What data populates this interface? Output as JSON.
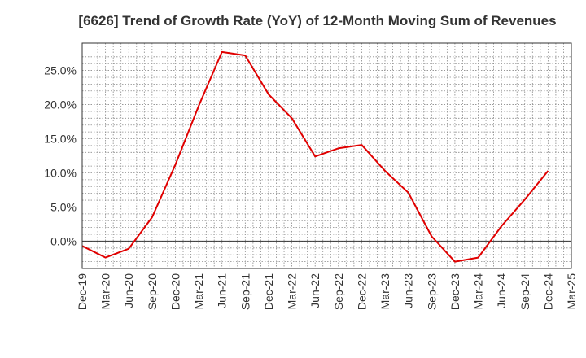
{
  "chart_data": {
    "type": "line",
    "title": "[6626]  Trend of Growth Rate (YoY) of 12-Month Moving Sum of Revenues",
    "xlabel": "",
    "ylabel": "",
    "x_tick_labels": [
      "Dec-19",
      "Mar-20",
      "Jun-20",
      "Sep-20",
      "Dec-20",
      "Mar-21",
      "Jun-21",
      "Sep-21",
      "Dec-21",
      "Mar-22",
      "Jun-22",
      "Sep-22",
      "Dec-22",
      "Mar-23",
      "Jun-23",
      "Sep-23",
      "Dec-23",
      "Mar-24",
      "Jun-24",
      "Sep-24",
      "Dec-24",
      "Mar-25"
    ],
    "y_tick_labels": [
      "0.0%",
      "5.0%",
      "10.0%",
      "15.0%",
      "20.0%",
      "25.0%"
    ],
    "y_ticks": [
      0,
      5,
      10,
      15,
      20,
      25
    ],
    "ylim": [
      -4,
      29
    ],
    "grid": true,
    "series": [
      {
        "color": "#e00000",
        "points": [
          {
            "x": "Dec-19",
            "y": -0.7
          },
          {
            "x": "Mar-20",
            "y": -2.4
          },
          {
            "x": "Jun-20",
            "y": -1.1
          },
          {
            "x": "Sep-20",
            "y": 3.5
          },
          {
            "x": "Dec-20",
            "y": 11.2
          },
          {
            "x": "Mar-21",
            "y": 19.8
          },
          {
            "x": "Jun-21",
            "y": 27.7
          },
          {
            "x": "Sep-21",
            "y": 27.2
          },
          {
            "x": "Dec-21",
            "y": 21.5
          },
          {
            "x": "Mar-22",
            "y": 18.0
          },
          {
            "x": "Jun-22",
            "y": 12.4
          },
          {
            "x": "Sep-22",
            "y": 13.6
          },
          {
            "x": "Dec-22",
            "y": 14.1
          },
          {
            "x": "Mar-23",
            "y": 10.3
          },
          {
            "x": "Jun-23",
            "y": 7.1
          },
          {
            "x": "Sep-23",
            "y": 0.7
          },
          {
            "x": "Dec-23",
            "y": -3.0
          },
          {
            "x": "Mar-24",
            "y": -2.4
          },
          {
            "x": "Jun-24",
            "y": 2.2
          },
          {
            "x": "Sep-24",
            "y": 6.1
          },
          {
            "x": "Dec-24",
            "y": 10.3
          }
        ]
      }
    ]
  }
}
